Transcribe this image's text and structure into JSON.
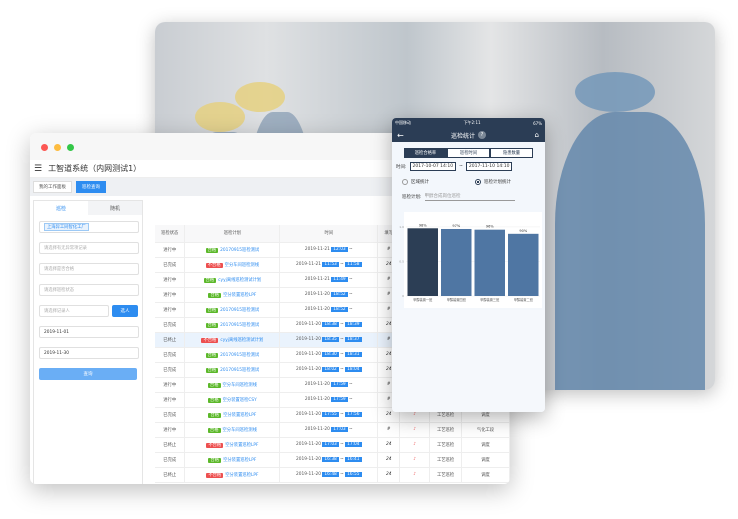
{
  "desktop": {
    "app_title": "工智道系统（内网测试1）",
    "tabs": [
      {
        "label": "我的工作面板"
      },
      {
        "label": "巡检查询"
      }
    ],
    "left_tabs": [
      "巡检",
      "随机"
    ],
    "factory_tag": "上海异工同智化工厂",
    "selects": [
      "请选择有无异常项记录",
      "请选择是否合格",
      "请选择巡检状态"
    ],
    "recorder_placeholder": "请选择记录人",
    "select_btn": "选人",
    "date_from": "2019-11-01",
    "date_to": "2019-11-30",
    "query_btn": "查询",
    "columns": [
      "巡检状态",
      "巡检计划",
      "时间",
      "填写",
      "",
      "",
      ""
    ],
    "rows": [
      {
        "status": "进行中",
        "result": "合格",
        "plan": "20170915巡检测试",
        "date": "2019-11-21",
        "start": "12:03",
        "end": "",
        "fill": "#",
        "c5": "",
        "c6": "",
        "c7": ""
      },
      {
        "status": "已完成",
        "result": "不合格",
        "plan": "空分车间巡检测线",
        "date": "2019-11-21",
        "start": "11:53",
        "end": "11:58",
        "fill": "24",
        "c5": "",
        "c6": "",
        "c7": ""
      },
      {
        "status": "进行中",
        "result": "合格",
        "plan": "cyyj离线巡检测试计划",
        "date": "2019-11-21",
        "start": "11:49",
        "end": "",
        "fill": "#",
        "c5": "",
        "c6": "",
        "c7": ""
      },
      {
        "status": "进行中",
        "result": "合格",
        "plan": "空分装置巡检LPF",
        "date": "2019-11-20",
        "start": "18:52",
        "end": "",
        "fill": "#",
        "c5": "",
        "c6": "",
        "c7": ""
      },
      {
        "status": "进行中",
        "result": "合格",
        "plan": "20170915巡检测试",
        "date": "2019-11-20",
        "start": "18:52",
        "end": "",
        "fill": "#",
        "c5": "",
        "c6": "",
        "c7": ""
      },
      {
        "status": "已完成",
        "result": "合格",
        "plan": "20170915巡检测试",
        "date": "2019-11-20",
        "start": "18:38",
        "end": "18:39",
        "fill": "24",
        "c5": "",
        "c6": "",
        "c7": ""
      },
      {
        "status": "已终止",
        "result": "不合格",
        "plan": "cyyj离线巡检测试计划",
        "date": "2019-11-20",
        "start": "18:35",
        "end": "18:37",
        "fill": "#",
        "c5": "",
        "c6": "",
        "c7": "",
        "highlight": true
      },
      {
        "status": "已完成",
        "result": "合格",
        "plan": "20170915巡检测试",
        "date": "2019-11-20",
        "start": "18:30",
        "end": "18:31",
        "fill": "24",
        "c5": "",
        "c6": "",
        "c7": ""
      },
      {
        "status": "已完成",
        "result": "合格",
        "plan": "20170915巡检测试",
        "date": "2019-11-20",
        "start": "18:02",
        "end": "18:04",
        "fill": "24",
        "c5": "",
        "c6": "",
        "c7": ""
      },
      {
        "status": "进行中",
        "result": "合格",
        "plan": "空分车间巡检测线",
        "date": "2019-11-20",
        "start": "17:59",
        "end": "",
        "fill": "#",
        "c5": "",
        "c6": "",
        "c7": ""
      },
      {
        "status": "进行中",
        "result": "合格",
        "plan": "空分装置巡检CSY",
        "date": "2019-11-20",
        "start": "17:59",
        "end": "",
        "fill": "#",
        "c5": "",
        "c6": "",
        "c7": ""
      },
      {
        "status": "已完成",
        "result": "合格",
        "plan": "空分装置巡检LPF",
        "date": "2019-11-20",
        "start": "17:55",
        "end": "17:56",
        "fill": "24",
        "c5": "♪",
        "c6": "工艺巡检",
        "c7": "调度"
      },
      {
        "status": "进行中",
        "result": "合格",
        "plan": "空分车间巡检测线",
        "date": "2019-11-20",
        "start": "17:03",
        "end": "",
        "fill": "#",
        "c5": "♪",
        "c6": "工艺巡检",
        "c7": "气化工段"
      },
      {
        "status": "已终止",
        "result": "不合格",
        "plan": "空分装置巡检LPF",
        "date": "2019-11-20",
        "start": "17:03",
        "end": "17:04",
        "fill": "24",
        "c5": "♪",
        "c6": "工艺巡检",
        "c7": "调度"
      },
      {
        "status": "已完成",
        "result": "合格",
        "plan": "空分装置巡检LPF",
        "date": "2019-11-20",
        "start": "16:38",
        "end": "16:41",
        "fill": "24",
        "c5": "♪",
        "c6": "工艺巡检",
        "c7": "调度"
      },
      {
        "status": "已终止",
        "result": "不合格",
        "plan": "空分装置巡检LPF",
        "date": "2019-11-20",
        "start": "16:48",
        "end": "16:55",
        "fill": "24",
        "c5": "♪",
        "c6": "工艺巡检",
        "c7": "调度"
      }
    ]
  },
  "mobile": {
    "carrier": "中国移动",
    "clock": "下午2:11",
    "battery": "67%",
    "title": "巡检统计",
    "segments": [
      "巡检合格率",
      "巡检时间",
      "隐患数量"
    ],
    "time_label": "时间:",
    "from": "2017-10-07 14:10",
    "to": "2017-11-10 14:10",
    "radio_area": "区域统计",
    "radio_plan": "巡检计划统计",
    "plan_label": "巡检计划:",
    "plan_value": "甲醇合成岗位巡检"
  },
  "chart_data": {
    "type": "bar",
    "categories": [
      "甲醇装置一班",
      "甲醇装置四班",
      "甲醇装置三班",
      "甲醇装置二班"
    ],
    "values": [
      0.98,
      0.97,
      0.96,
      0.9
    ],
    "data_labels": [
      "98%",
      "97%",
      "96%",
      "90%"
    ],
    "yticks": [
      "0",
      "0.5",
      "1.0"
    ],
    "ylim": [
      0,
      1.1
    ],
    "colors": [
      "#2c3e55",
      "#4f76a3",
      "#4f76a3",
      "#4f76a3"
    ]
  }
}
